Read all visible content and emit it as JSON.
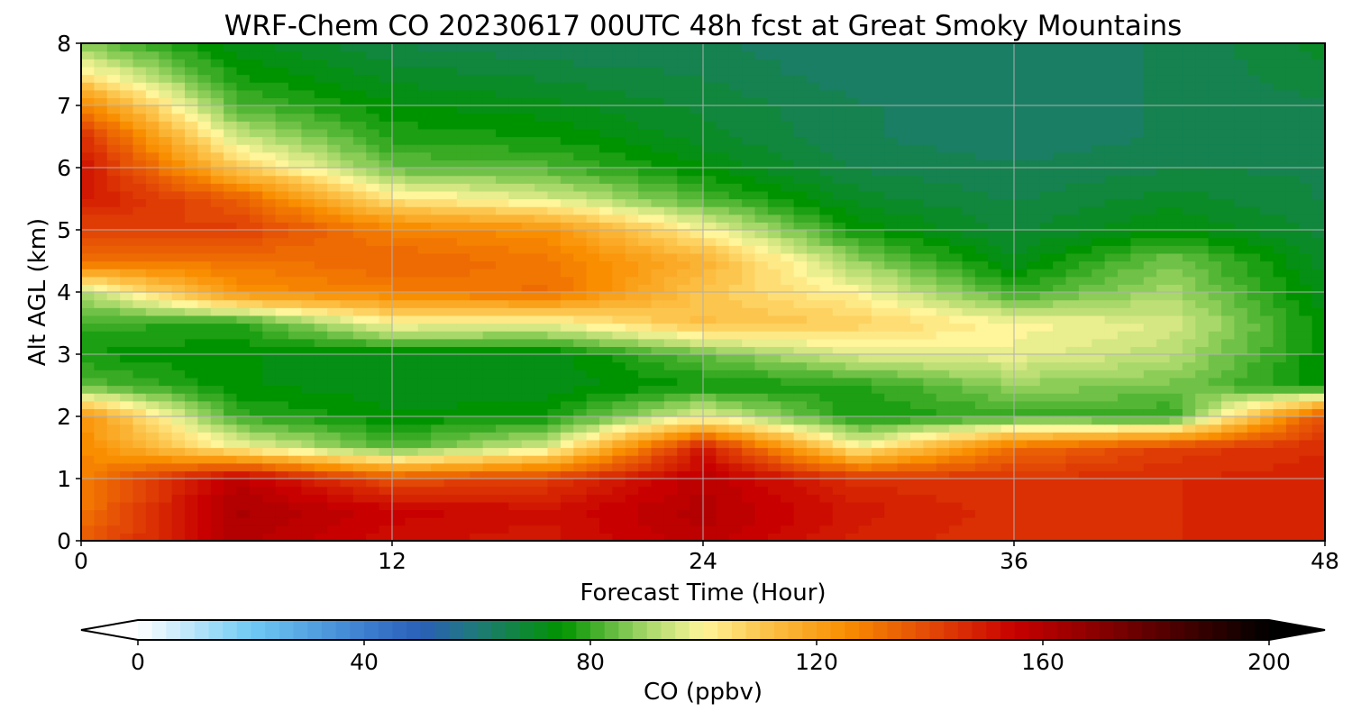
{
  "chart_data": {
    "type": "heatmap",
    "title": "WRF-Chem CO  20230617 00UTC 48h fcst at Great Smoky Mountains",
    "xlabel": "Forecast Time (Hour)",
    "ylabel": "Alt AGL (km)",
    "xlim": [
      0,
      48
    ],
    "ylim": [
      0,
      8
    ],
    "xticks": [
      "0",
      "12",
      "24",
      "36",
      "48"
    ],
    "yticks": [
      "0",
      "1",
      "2",
      "3",
      "4",
      "5",
      "6",
      "7",
      "8"
    ],
    "grid": true,
    "colorbar": {
      "label": "CO  (ppbv)",
      "range": [
        0,
        200
      ],
      "ticks": [
        "0",
        "40",
        "80",
        "120",
        "160",
        "200"
      ],
      "extend": "both",
      "stops": [
        {
          "v": 0,
          "c": "#ffffff"
        },
        {
          "v": 20,
          "c": "#6fcaf4"
        },
        {
          "v": 40,
          "c": "#3d7fd0"
        },
        {
          "v": 50,
          "c": "#2a5fb8"
        },
        {
          "v": 60,
          "c": "#1f7a78"
        },
        {
          "v": 75,
          "c": "#009300"
        },
        {
          "v": 90,
          "c": "#a8d86a"
        },
        {
          "v": 100,
          "c": "#fff59a"
        },
        {
          "v": 110,
          "c": "#fcc64e"
        },
        {
          "v": 125,
          "c": "#f98e00"
        },
        {
          "v": 140,
          "c": "#e34806"
        },
        {
          "v": 155,
          "c": "#c80000"
        },
        {
          "v": 175,
          "c": "#720000"
        },
        {
          "v": 200,
          "c": "#000000"
        }
      ]
    },
    "x": [
      0,
      6,
      12,
      18,
      24,
      30,
      36,
      42,
      48
    ],
    "y": [
      0.0,
      0.5,
      1.0,
      1.5,
      2.0,
      2.5,
      3.0,
      3.5,
      4.0,
      4.5,
      5.0,
      5.5,
      6.0,
      6.5,
      7.0,
      7.5,
      8.0
    ],
    "values": [
      [
        135,
        160,
        152,
        150,
        158,
        148,
        144,
        146,
        148
      ],
      [
        130,
        162,
        155,
        152,
        160,
        150,
        145,
        146,
        148
      ],
      [
        128,
        158,
        138,
        142,
        158,
        145,
        144,
        146,
        148
      ],
      [
        126,
        100,
        82,
        96,
        150,
        100,
        132,
        142,
        146
      ],
      [
        124,
        80,
        74,
        76,
        98,
        76,
        80,
        78,
        140
      ],
      [
        84,
        74,
        72,
        72,
        76,
        78,
        88,
        86,
        74
      ],
      [
        76,
        74,
        72,
        72,
        84,
        96,
        98,
        92,
        74
      ],
      [
        80,
        78,
        100,
        98,
        112,
        108,
        100,
        96,
        74
      ],
      [
        90,
        124,
        128,
        132,
        110,
        100,
        80,
        90,
        72
      ],
      [
        132,
        130,
        134,
        130,
        116,
        88,
        72,
        86,
        70
      ],
      [
        140,
        142,
        128,
        124,
        100,
        76,
        68,
        74,
        68
      ],
      [
        150,
        136,
        104,
        96,
        82,
        70,
        66,
        70,
        66
      ],
      [
        152,
        110,
        84,
        82,
        74,
        66,
        64,
        66,
        66
      ],
      [
        146,
        94,
        78,
        76,
        70,
        64,
        62,
        64,
        66
      ],
      [
        128,
        82,
        74,
        72,
        68,
        64,
        62,
        64,
        66
      ],
      [
        104,
        76,
        70,
        68,
        66,
        62,
        62,
        64,
        68
      ],
      [
        86,
        72,
        66,
        64,
        64,
        62,
        62,
        64,
        70
      ]
    ]
  }
}
